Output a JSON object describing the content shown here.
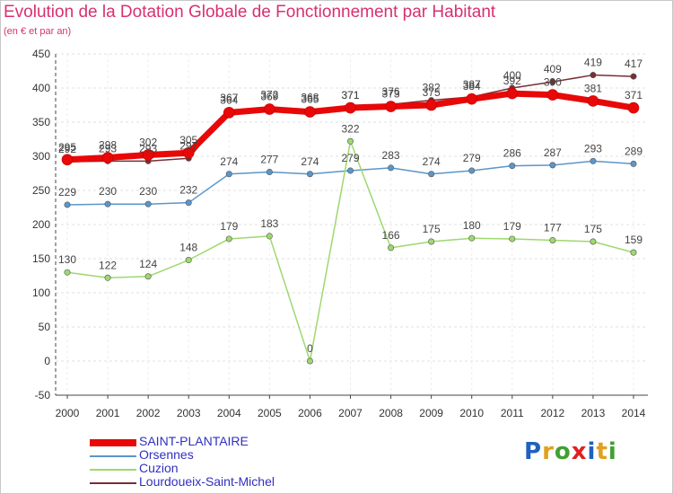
{
  "title": "Evolution de la Dotation Globale de Fonctionnement par Habitant",
  "subtitle": "(en € et par an)",
  "brand": {
    "text": "Proxiti",
    "colors": [
      "#2060c0",
      "#e0a020",
      "#40a030",
      "#e02020",
      "#2060c0",
      "#e0a020",
      "#40a030"
    ]
  },
  "chart_data": {
    "type": "line",
    "title": "Evolution de la Dotation Globale de Fonctionnement par Habitant",
    "subtitle": "(en € et par an)",
    "xlabel": "",
    "ylabel": "",
    "ylim": [
      -50,
      450
    ],
    "yticks": [
      -50,
      0,
      50,
      100,
      150,
      200,
      250,
      300,
      350,
      400,
      450
    ],
    "grid": "horizontal dashed",
    "categories": [
      "2000",
      "2001",
      "2002",
      "2003",
      "2004",
      "2005",
      "2006",
      "2007",
      "2008",
      "2009",
      "2010",
      "2011",
      "2012",
      "2013",
      "2014"
    ],
    "legend_position": "bottom-left",
    "series": [
      {
        "name": "Lourdoueix-Saint-Michel",
        "color": "#7a2d35",
        "values": [
          292,
          293,
          293,
          297,
          367,
          372,
          368,
          371,
          376,
          382,
          387,
          400,
          409,
          419,
          417
        ]
      },
      {
        "name": "Orsennes",
        "color": "#5b96c8",
        "values": [
          229,
          230,
          230,
          232,
          274,
          277,
          274,
          279,
          283,
          274,
          279,
          286,
          287,
          293,
          289
        ]
      },
      {
        "name": "Cuzion",
        "color": "#9ed86f",
        "values": [
          130,
          122,
          124,
          148,
          179,
          183,
          0,
          322,
          166,
          175,
          180,
          179,
          177,
          175,
          159
        ]
      },
      {
        "name": "SAINT-PLANTAIRE",
        "color": "#e80808",
        "values": [
          295,
          298,
          302,
          305,
          364,
          369,
          365,
          371,
          373,
          375,
          384,
          392,
          390,
          381,
          371
        ]
      }
    ],
    "legend_order": [
      "SAINT-PLANTAIRE",
      "Orsennes",
      "Cuzion",
      "Lourdoueix-Saint-Michel"
    ]
  }
}
